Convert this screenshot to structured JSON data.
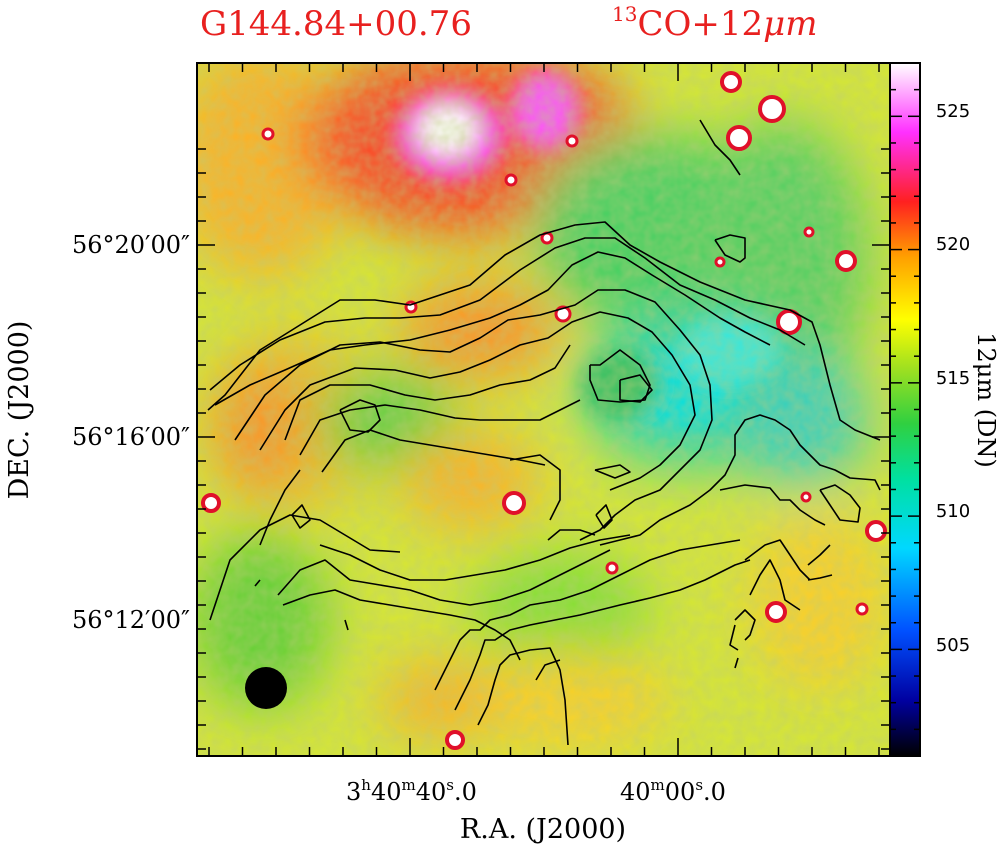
{
  "header": {
    "source_name": "G144.84+00.76",
    "overlay_iso": "13",
    "overlay_mol": "CO+12",
    "overlay_unit": "μm"
  },
  "chart_data": {
    "type": "heatmap",
    "title": "G144.84+00.76",
    "subtitle": "13CO+12μm",
    "xlabel": "R.A. (J2000)",
    "ylabel": "DEC. (J2000)",
    "x_ticks": [
      {
        "h": "3",
        "m": "40",
        "s": "40",
        "frac": "0",
        "label": "3h40m40.0s"
      },
      {
        "m": "40",
        "s": "00",
        "frac": "0",
        "label": "40m00.0s"
      }
    ],
    "y_ticks": [
      "56°20′00″",
      "56°16′00″",
      "56°12′00″"
    ],
    "colorbar": {
      "label": "12μm (DN)",
      "range": [
        501,
        527
      ],
      "ticks": [
        "505",
        "510",
        "515",
        "520",
        "525"
      ],
      "colors": [
        "#000000",
        "#1010d0",
        "#00a0ff",
        "#00e0e0",
        "#20d060",
        "#a0e020",
        "#ffff00",
        "#ffa000",
        "#ff2020",
        "#ff00ff",
        "#ffffff"
      ]
    },
    "beam": "filled circle (lower-left)"
  }
}
